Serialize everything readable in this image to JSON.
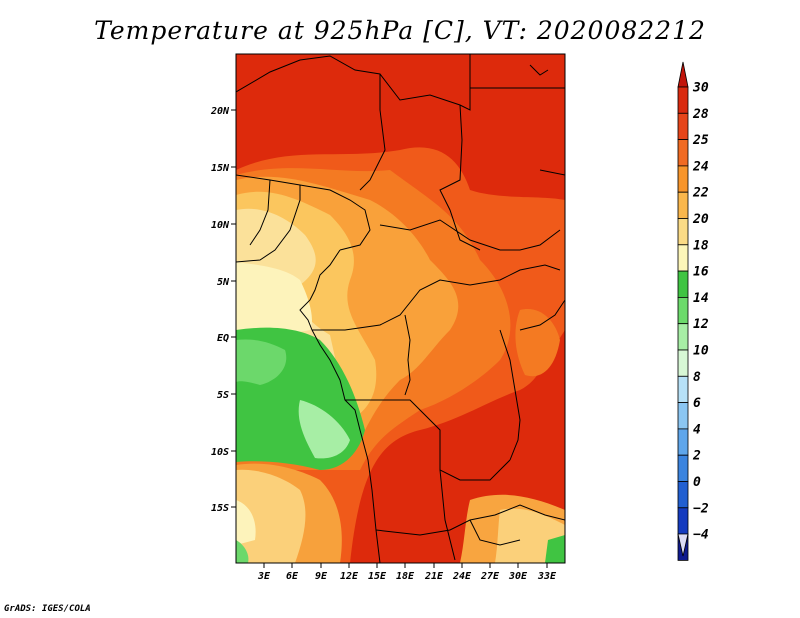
{
  "title": "Temperature at 925hPa [C], VT: 2020082212",
  "credit": "GrADS: IGES/COLA",
  "lat_labels": [
    "20N",
    "15N",
    "10N",
    "5N",
    "EQ",
    "5S",
    "10S",
    "15S"
  ],
  "lon_labels": [
    "3E",
    "6E",
    "9E",
    "12E",
    "15E",
    "18E",
    "21E",
    "24E",
    "27E",
    "30E",
    "33E"
  ],
  "colorbar": {
    "labels": [
      "30",
      "28",
      "25",
      "24",
      "22",
      "20",
      "18",
      "16",
      "14",
      "12",
      "10",
      "8",
      "6",
      "4",
      "2",
      "0",
      "−2",
      "−4"
    ],
    "colors": [
      "#d92a0f",
      "#e6451a",
      "#f06a22",
      "#f7952b",
      "#fab74c",
      "#fbdb86",
      "#fdf6b9",
      "#3fc442",
      "#6cda6b",
      "#a7eea5",
      "#d7f7d5",
      "#b7e1f7",
      "#8bc6f2",
      "#5fa6eb",
      "#3b84df",
      "#215fd1",
      "#153bbf",
      "#0f1a8f"
    ],
    "over_color": "#c1140a",
    "under_color": "#dcdcf5"
  }
}
